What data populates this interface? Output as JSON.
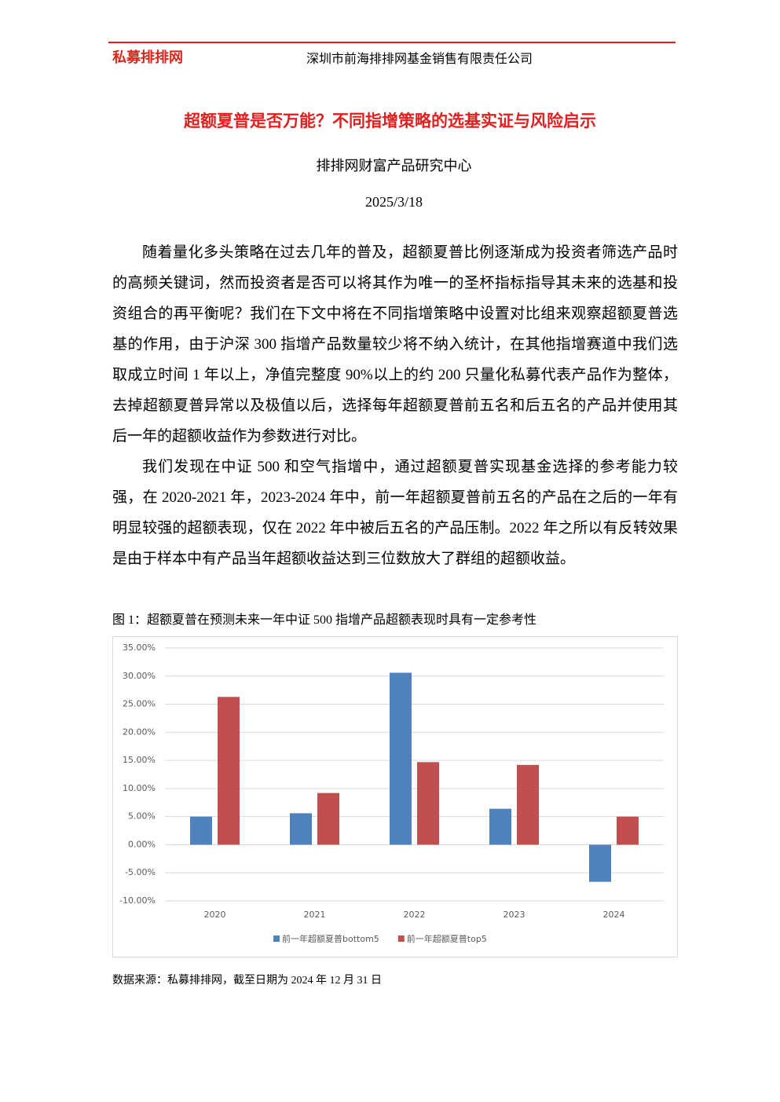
{
  "header": {
    "logo": "私募排排网",
    "company": "深圳市前海排排网基金销售有限责任公司"
  },
  "title": "超额夏普是否万能？不同指增策略的选基实证与风险启示",
  "author": "排排网财富产品研究中心",
  "date": "2025/3/18",
  "paragraphs": [
    "随着量化多头策略在过去几年的普及，超额夏普比例逐渐成为投资者筛选产品时的高频关键词，然而投资者是否可以将其作为唯一的圣杯指标指导其未来的选基和投资组合的再平衡呢？我们在下文中将在不同指增策略中设置对比组来观察超额夏普选基的作用，由于沪深 300 指增产品数量较少将不纳入统计，在其他指增赛道中我们选取成立时间 1 年以上，净值完整度 90%以上的约 200 只量化私募代表产品作为整体，去掉超额夏普异常以及极值以后，选择每年超额夏普前五名和后五名的产品并使用其后一年的超额收益作为参数进行对比。",
    "我们发现在中证 500 和空气指增中，通过超额夏普实现基金选择的参考能力较强，在 2020-2021 年，2023-2024 年中，前一年超额夏普前五名的产品在之后的一年有明显较强的超额表现，仅在 2022 年中被后五名的产品压制。2022 年之所以有反转效果是由于样本中有产品当年超额收益达到三位数放大了群组的超额收益。"
  ],
  "figure": {
    "caption": "图 1：超额夏普在预测未来一年中证 500 指增产品超额表现时具有一定参考性",
    "source": "数据来源：私募排排网，截至日期为 2024 年 12 月 31 日"
  },
  "chart_data": {
    "type": "bar",
    "categories": [
      "2020",
      "2021",
      "2022",
      "2023",
      "2024"
    ],
    "series": [
      {
        "name": "前一年超额夏普bottom5",
        "color": "#4f81bd",
        "values": [
          5.0,
          5.6,
          30.6,
          6.4,
          -6.6
        ]
      },
      {
        "name": "前一年超额夏普top5",
        "color": "#c0504d",
        "values": [
          26.3,
          9.2,
          14.7,
          14.2,
          5.0
        ]
      }
    ],
    "ylim": [
      -10,
      35
    ],
    "yticks": [
      {
        "value": -10,
        "label": "-10.00%"
      },
      {
        "value": -5,
        "label": "-5.00%"
      },
      {
        "value": 0,
        "label": "0.00%"
      },
      {
        "value": 5,
        "label": "5.00%"
      },
      {
        "value": 10,
        "label": "10.00%"
      },
      {
        "value": 15,
        "label": "15.00%"
      },
      {
        "value": 20,
        "label": "20.00%"
      },
      {
        "value": 25,
        "label": "25.00%"
      },
      {
        "value": 30,
        "label": "30.00%"
      },
      {
        "value": 35,
        "label": "35.00%"
      }
    ],
    "grid": true,
    "legend": "bottom"
  }
}
